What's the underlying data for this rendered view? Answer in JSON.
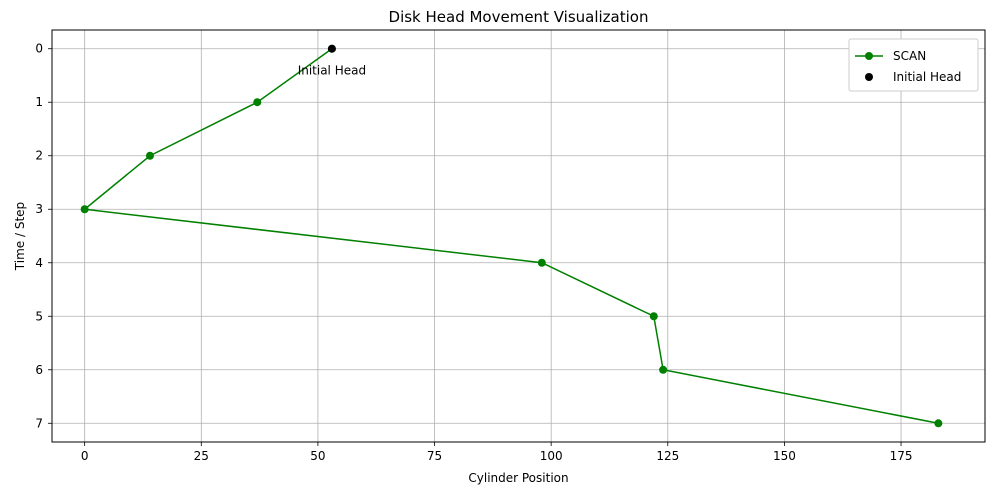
{
  "chart_data": {
    "type": "line",
    "title": "Disk Head Movement Visualization",
    "xlabel": "Cylinder Position",
    "ylabel": "Time / Step",
    "xlim": [
      -7,
      193
    ],
    "ylim": [
      7.35,
      -0.35
    ],
    "y_inverted": true,
    "xticks": [
      0,
      25,
      50,
      75,
      100,
      125,
      150,
      175
    ],
    "yticks": [
      0,
      1,
      2,
      3,
      4,
      5,
      6,
      7
    ],
    "grid": true,
    "legend_position": "top-right",
    "series": [
      {
        "name": "SCAN",
        "color": "#008000",
        "marker": "circle",
        "x": [
          53,
          37,
          14,
          0,
          98,
          122,
          124,
          183
        ],
        "y": [
          0,
          1,
          2,
          3,
          4,
          5,
          6,
          7
        ]
      }
    ],
    "initial_head": {
      "name": "Initial Head",
      "x": 53,
      "y": 0,
      "color": "#000000"
    },
    "annotations": [
      {
        "text": "Initial Head",
        "x": 53,
        "y": 0
      }
    ]
  }
}
